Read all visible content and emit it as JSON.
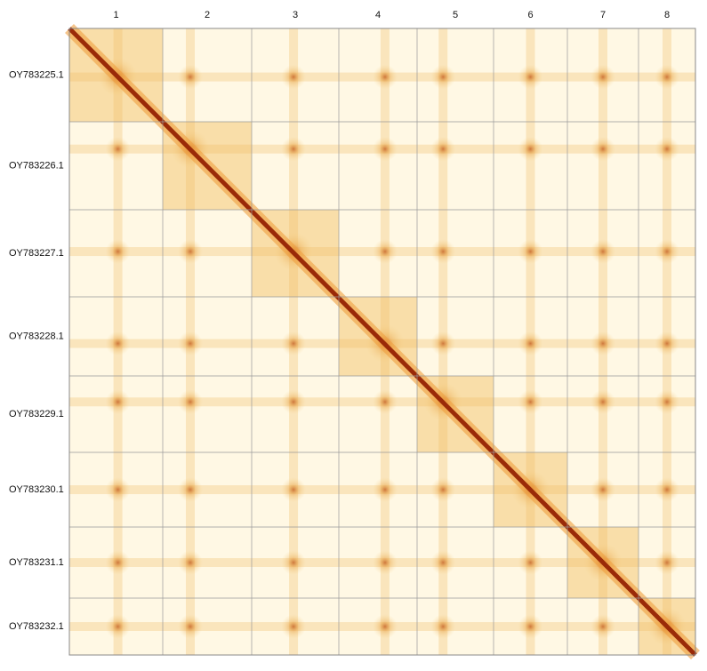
{
  "map": {
    "column_labels": [
      "1",
      "2",
      "3",
      "4",
      "5",
      "6",
      "7",
      "8"
    ],
    "row_labels": [
      "OY783225.1",
      "OY783226.1",
      "OY783227.1",
      "OY783228.1",
      "OY783229.1",
      "OY783230.1",
      "OY783231.1",
      "OY783232.1"
    ]
  }
}
